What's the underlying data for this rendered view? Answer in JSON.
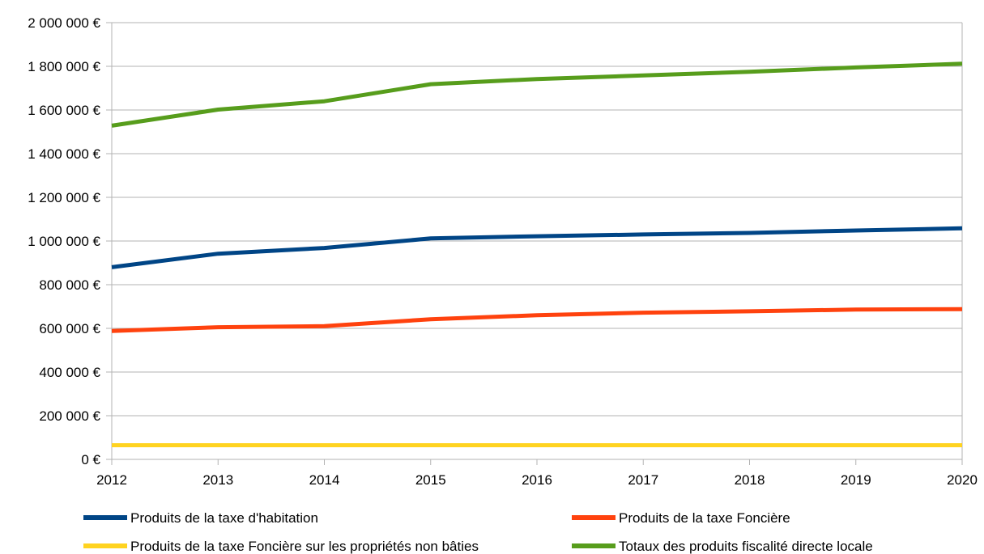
{
  "chart_data": {
    "type": "line",
    "title": "",
    "xlabel": "",
    "ylabel": "",
    "x": [
      2012,
      2013,
      2014,
      2015,
      2016,
      2017,
      2018,
      2019,
      2020
    ],
    "x_tick_labels": [
      "2012",
      "2013",
      "2014",
      "2015",
      "2016",
      "2017",
      "2018",
      "2019",
      "2020"
    ],
    "ylim": [
      0,
      2000000
    ],
    "y_ticks": [
      0,
      200000,
      400000,
      600000,
      800000,
      1000000,
      1200000,
      1400000,
      1600000,
      1800000,
      2000000
    ],
    "y_tick_labels": [
      "0 €",
      "200 000 €",
      "400 000 €",
      "600 000 €",
      "800 000 €",
      "1 000 000 €",
      "1 200 000 €",
      "1 400 000 €",
      "1 600 000 €",
      "1 800 000 €",
      "2 000 000 €"
    ],
    "grid": "horizontal",
    "legend_position": "bottom",
    "series": [
      {
        "name": "Produits de la taxe d'habitation",
        "color": "#004586",
        "values": [
          880000,
          942000,
          968000,
          1012000,
          1022000,
          1030000,
          1037000,
          1048000,
          1058000
        ]
      },
      {
        "name": "Produits de la taxe Foncière",
        "color": "#ff420e",
        "values": [
          588000,
          605000,
          610000,
          642000,
          660000,
          672000,
          678000,
          686000,
          688000
        ]
      },
      {
        "name": "Produits de la taxe Foncière sur les propriétés non bâties",
        "color": "#ffd320",
        "values": [
          65000,
          65000,
          65000,
          65000,
          65000,
          65000,
          65000,
          65000,
          65000
        ]
      },
      {
        "name": "Totaux des produits fiscalité directe locale",
        "color": "#579d1c",
        "values": [
          1528000,
          1602000,
          1640000,
          1718000,
          1742000,
          1758000,
          1775000,
          1795000,
          1812000
        ]
      }
    ]
  }
}
